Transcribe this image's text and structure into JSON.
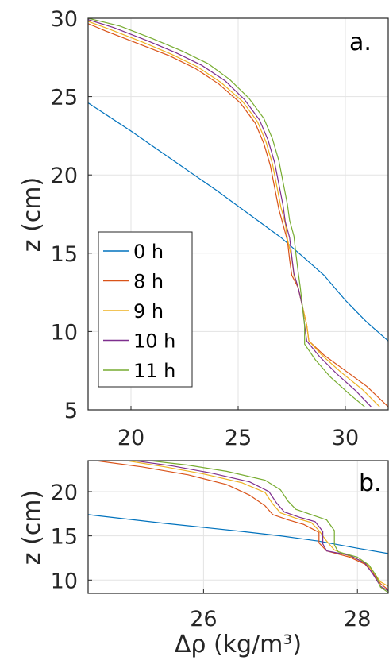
{
  "chart_data": [
    {
      "type": "line",
      "panel_label": "a.",
      "xlim": [
        18,
        32
      ],
      "ylim": [
        5,
        30
      ],
      "xticks": [
        20,
        25,
        30
      ],
      "yticks": [
        5,
        10,
        15,
        20,
        25,
        30
      ],
      "xlabel": "",
      "ylabel": "z (cm)",
      "grid": true,
      "legend_position": "center-left",
      "series": [
        {
          "name": "0 h",
          "color": "#0072BD",
          "points": [
            [
              18.0,
              24.6
            ],
            [
              20,
              22.8
            ],
            [
              22,
              20.9
            ],
            [
              24,
              19.0
            ],
            [
              26,
              17.0
            ],
            [
              27,
              16.0
            ],
            [
              28,
              14.8
            ],
            [
              29,
              13.6
            ],
            [
              30,
              12.0
            ],
            [
              31,
              10.6
            ],
            [
              32,
              9.4
            ]
          ]
        },
        {
          "name": "8 h",
          "color": "#D95319",
          "points": [
            [
              17.4,
              30
            ],
            [
              18.8,
              29.2
            ],
            [
              20.3,
              28.4
            ],
            [
              21.8,
              27.6
            ],
            [
              23.0,
              26.8
            ],
            [
              24.1,
              25.8
            ],
            [
              25.1,
              24.6
            ],
            [
              25.8,
              23.3
            ],
            [
              26.2,
              22.0
            ],
            [
              26.5,
              20.6
            ],
            [
              26.7,
              19.2
            ],
            [
              26.9,
              17.8
            ],
            [
              27.1,
              16.8
            ],
            [
              27.3,
              15.8
            ],
            [
              27.4,
              14.6
            ],
            [
              27.5,
              13.6
            ],
            [
              27.8,
              12.8
            ],
            [
              28.0,
              11.6
            ],
            [
              28.2,
              10.4
            ],
            [
              28.3,
              9.4
            ],
            [
              29.0,
              8.5
            ],
            [
              30.0,
              7.5
            ],
            [
              31.0,
              6.5
            ],
            [
              32.0,
              5.2
            ]
          ]
        },
        {
          "name": "9 h",
          "color": "#EDB120",
          "points": [
            [
              17.6,
              30
            ],
            [
              19.0,
              29.3
            ],
            [
              20.5,
              28.5
            ],
            [
              21.9,
              27.7
            ],
            [
              23.1,
              26.9
            ],
            [
              24.2,
              25.9
            ],
            [
              25.2,
              24.7
            ],
            [
              25.9,
              23.4
            ],
            [
              26.3,
              22.1
            ],
            [
              26.6,
              20.7
            ],
            [
              26.8,
              19.3
            ],
            [
              27.0,
              17.9
            ],
            [
              27.2,
              16.9
            ],
            [
              27.3,
              15.9
            ],
            [
              27.5,
              14.7
            ],
            [
              27.6,
              13.6
            ],
            [
              27.8,
              12.8
            ],
            [
              28.0,
              11.6
            ],
            [
              28.2,
              10.4
            ],
            [
              28.3,
              9.4
            ],
            [
              28.9,
              8.5
            ],
            [
              29.8,
              7.4
            ],
            [
              30.8,
              6.3
            ],
            [
              31.6,
              5.2
            ]
          ]
        },
        {
          "name": "10 h",
          "color": "#7E2F8E",
          "points": [
            [
              17.8,
              30
            ],
            [
              19.2,
              29.4
            ],
            [
              20.7,
              28.6
            ],
            [
              22.1,
              27.8
            ],
            [
              23.3,
              27.0
            ],
            [
              24.4,
              26.0
            ],
            [
              25.3,
              24.8
            ],
            [
              26.0,
              23.5
            ],
            [
              26.4,
              22.2
            ],
            [
              26.7,
              20.8
            ],
            [
              26.9,
              19.4
            ],
            [
              27.1,
              18.0
            ],
            [
              27.2,
              17.0
            ],
            [
              27.4,
              16.0
            ],
            [
              27.5,
              14.8
            ],
            [
              27.6,
              13.7
            ],
            [
              27.8,
              12.8
            ],
            [
              28.0,
              11.6
            ],
            [
              28.1,
              10.4
            ],
            [
              28.2,
              9.4
            ],
            [
              28.8,
              8.4
            ],
            [
              29.6,
              7.3
            ],
            [
              30.5,
              6.2
            ],
            [
              31.2,
              5.2
            ]
          ]
        },
        {
          "name": "11 h",
          "color": "#77AC30",
          "points": [
            [
              18.0,
              30
            ],
            [
              19.5,
              29.5
            ],
            [
              21.0,
              28.7
            ],
            [
              22.4,
              27.9
            ],
            [
              23.6,
              27.1
            ],
            [
              24.6,
              26.1
            ],
            [
              25.5,
              24.9
            ],
            [
              26.2,
              23.6
            ],
            [
              26.6,
              22.3
            ],
            [
              26.9,
              20.9
            ],
            [
              27.1,
              19.5
            ],
            [
              27.3,
              18.1
            ],
            [
              27.4,
              17.1
            ],
            [
              27.6,
              16.1
            ],
            [
              27.7,
              14.9
            ],
            [
              27.8,
              13.8
            ],
            [
              27.9,
              12.8
            ],
            [
              28.0,
              11.6
            ],
            [
              28.1,
              10.4
            ],
            [
              28.1,
              9.2
            ],
            [
              28.6,
              8.2
            ],
            [
              29.3,
              7.1
            ],
            [
              30.2,
              6.0
            ],
            [
              30.9,
              5.2
            ]
          ]
        }
      ]
    },
    {
      "type": "line",
      "panel_label": "b.",
      "xlim": [
        24.5,
        28.4
      ],
      "ylim": [
        8.5,
        23.5
      ],
      "xticks": [
        26,
        28
      ],
      "yticks": [
        10,
        15,
        20
      ],
      "xlabel": "Δρ (kg/m³)",
      "ylabel": "z (cm)",
      "grid": true,
      "series": [
        {
          "name": "0 h",
          "color": "#0072BD",
          "points": [
            [
              24.5,
              17.4
            ],
            [
              25.5,
              16.4
            ],
            [
              26.5,
              15.5
            ],
            [
              27.0,
              15.0
            ],
            [
              27.5,
              14.4
            ],
            [
              28.0,
              13.6
            ],
            [
              28.4,
              13.0
            ]
          ]
        },
        {
          "name": "8 h",
          "color": "#D95319",
          "points": [
            [
              24.6,
              23.5
            ],
            [
              25.2,
              22.8
            ],
            [
              25.8,
              21.9
            ],
            [
              26.3,
              20.8
            ],
            [
              26.6,
              19.6
            ],
            [
              26.8,
              18.4
            ],
            [
              26.9,
              17.4
            ],
            [
              27.1,
              16.8
            ],
            [
              27.3,
              16.3
            ],
            [
              27.5,
              15.4
            ],
            [
              27.5,
              14.2
            ],
            [
              27.6,
              13.3
            ],
            [
              27.9,
              12.6
            ],
            [
              28.1,
              11.8
            ],
            [
              28.2,
              10.8
            ],
            [
              28.3,
              9.6
            ],
            [
              28.4,
              8.9
            ]
          ]
        },
        {
          "name": "9 h",
          "color": "#EDB120",
          "points": [
            [
              25.0,
              23.5
            ],
            [
              25.5,
              22.8
            ],
            [
              26.0,
              22.0
            ],
            [
              26.5,
              21.0
            ],
            [
              26.8,
              19.9
            ],
            [
              26.9,
              18.6
            ],
            [
              27.0,
              17.6
            ],
            [
              27.2,
              17.0
            ],
            [
              27.4,
              16.5
            ],
            [
              27.5,
              15.6
            ],
            [
              27.6,
              14.4
            ],
            [
              27.7,
              13.4
            ],
            [
              27.9,
              12.7
            ],
            [
              28.1,
              12.0
            ],
            [
              28.2,
              11.0
            ],
            [
              28.3,
              9.8
            ],
            [
              28.4,
              9.3
            ]
          ]
        },
        {
          "name": "10 h",
          "color": "#7E2F8E",
          "points": [
            [
              25.1,
              23.5
            ],
            [
              25.6,
              22.9
            ],
            [
              26.1,
              22.1
            ],
            [
              26.6,
              21.1
            ],
            [
              26.85,
              20.0
            ],
            [
              26.95,
              18.7
            ],
            [
              27.05,
              17.7
            ],
            [
              27.25,
              17.1
            ],
            [
              27.45,
              16.6
            ],
            [
              27.55,
              15.5
            ],
            [
              27.55,
              14.1
            ],
            [
              27.6,
              13.3
            ],
            [
              27.9,
              12.8
            ],
            [
              28.1,
              11.9
            ],
            [
              28.2,
              10.7
            ],
            [
              28.3,
              9.3
            ],
            [
              28.4,
              8.8
            ]
          ]
        },
        {
          "name": "11 h",
          "color": "#77AC30",
          "points": [
            [
              25.3,
              23.5
            ],
            [
              25.8,
              23.0
            ],
            [
              26.3,
              22.3
            ],
            [
              26.8,
              21.3
            ],
            [
              27.0,
              20.2
            ],
            [
              27.1,
              18.9
            ],
            [
              27.2,
              18.0
            ],
            [
              27.4,
              17.4
            ],
            [
              27.6,
              16.8
            ],
            [
              27.7,
              15.6
            ],
            [
              27.7,
              14.0
            ],
            [
              27.75,
              13.2
            ],
            [
              28.0,
              12.6
            ],
            [
              28.15,
              11.7
            ],
            [
              28.25,
              10.4
            ],
            [
              28.3,
              9.2
            ],
            [
              28.4,
              8.6
            ]
          ]
        }
      ]
    }
  ]
}
